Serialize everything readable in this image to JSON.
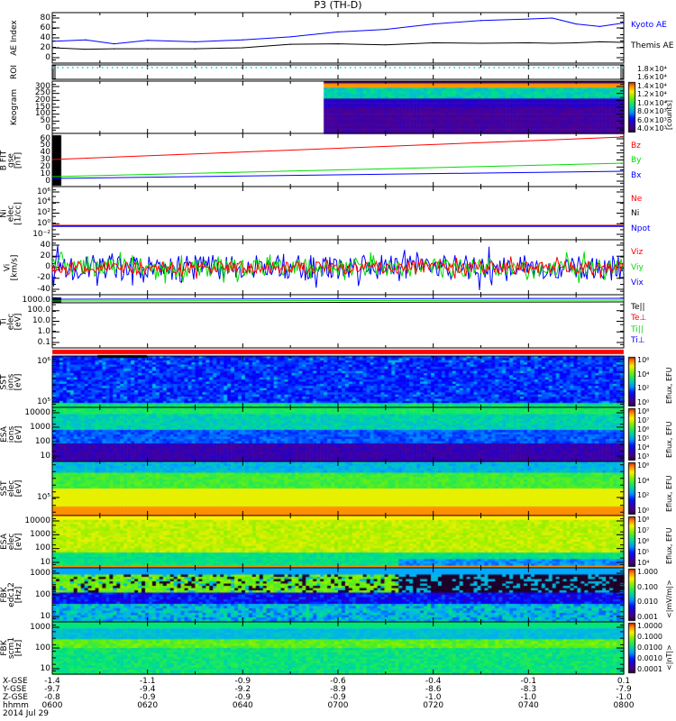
{
  "title": "P3 (TH-D)",
  "colors": {
    "blue": "#0000ff",
    "red": "#ff0000",
    "green": "#00dd00",
    "black": "#000000",
    "cyan": "#00ccdd"
  },
  "panels": [
    {
      "id": "ae",
      "ylabel": "AE Index",
      "ticks": [
        "0",
        "20",
        "40",
        "60",
        "80"
      ],
      "legend": [
        {
          "text": "Kyoto AE",
          "color": "#0000ff"
        },
        {
          "text": "Themis AE",
          "color": "#000000"
        }
      ]
    },
    {
      "id": "roi",
      "ylabel": "ROI",
      "ticks": [],
      "legend": []
    },
    {
      "id": "keogram",
      "ylabel": "Keogram",
      "ticks": [
        "0",
        "50",
        "100",
        "150",
        "200",
        "250",
        "300"
      ],
      "colorbar": {
        "labels": [
          "4.0×10³",
          "6.0×10³",
          "8.0×10³",
          "1.0×10⁴",
          "1.2×10⁴",
          "1.4×10⁴",
          "1.6×10⁴",
          "1.8×10⁴"
        ],
        "unit": "[counts]"
      }
    },
    {
      "id": "bfit",
      "ylabel": "B FIT\ngse\n[nT]",
      "ticks": [
        "0",
        "10",
        "20",
        "30",
        "40",
        "50",
        "60"
      ],
      "legend": [
        {
          "text": "Bz",
          "color": "#ff0000"
        },
        {
          "text": "By",
          "color": "#00dd00"
        },
        {
          "text": "Bx",
          "color": "#0000ff"
        }
      ]
    },
    {
      "id": "ni",
      "ylabel": "Ni\nelec\n[1/cc]",
      "ticks": [
        "10⁻²",
        "10⁰",
        "10²",
        "10⁴",
        "10⁶"
      ],
      "legend": [
        {
          "text": "Ne",
          "color": "#ff0000"
        },
        {
          "text": "Ni",
          "color": "#000000"
        },
        {
          "text": "Npot",
          "color": "#0000ff"
        }
      ]
    },
    {
      "id": "vi",
      "ylabel": "Vi\n[km/s]",
      "ticks": [
        "-40",
        "-20",
        "0",
        "20",
        "40"
      ],
      "legend": [
        {
          "text": "Viz",
          "color": "#ff0000"
        },
        {
          "text": "Viy",
          "color": "#00dd00"
        },
        {
          "text": "Vix",
          "color": "#0000ff"
        }
      ]
    },
    {
      "id": "ti",
      "ylabel": "Ti\nelec\n[eV]",
      "ticks": [
        "0.1",
        "1.0",
        "10.0",
        "100.0",
        "1000.0"
      ],
      "legend": [
        {
          "text": "Te||",
          "color": "#000000"
        },
        {
          "text": "Te⊥",
          "color": "#ff0000"
        },
        {
          "text": "Ti||",
          "color": "#00dd00"
        },
        {
          "text": "Ti⊥",
          "color": "#0000ff"
        }
      ]
    },
    {
      "id": "sst_i",
      "ylabel": "SST\nions\n[eV]",
      "ticks": [
        "10⁵",
        "10⁶"
      ],
      "colorbar": {
        "labels": [
          "10⁰",
          "10²",
          "10⁴",
          "10⁶"
        ],
        "unit": "Eflux, EFU"
      }
    },
    {
      "id": "esa_i",
      "ylabel": "ESA\nions\n[eV]",
      "ticks": [
        "10",
        "100",
        "1000",
        "10000"
      ],
      "colorbar": {
        "labels": [
          "10³",
          "10⁴",
          "10⁵",
          "10⁶",
          "10⁷",
          "10⁸"
        ],
        "unit": "Eflux, EFU"
      }
    },
    {
      "id": "sst_e",
      "ylabel": "SST\nelec\n[eV]",
      "ticks": [
        "10⁵"
      ],
      "colorbar": {
        "labels": [
          "10⁰",
          "10²",
          "10⁴",
          "10⁶"
        ],
        "unit": "Eflux, EFU"
      }
    },
    {
      "id": "esa_e",
      "ylabel": "ESA\nelec\n[eV]",
      "ticks": [
        "10",
        "100",
        "1000",
        "10000"
      ],
      "colorbar": {
        "labels": [
          "10⁴",
          "10⁵",
          "10⁶",
          "10⁷",
          "10⁸"
        ],
        "unit": "Eflux, EFU"
      }
    },
    {
      "id": "fbk_e",
      "ylabel": "FBK\nedc12\n[Hz]",
      "ticks": [
        "10",
        "100",
        "1000"
      ],
      "colorbar": {
        "labels": [
          "0.001",
          "0.010",
          "0.100",
          "1.000"
        ],
        "unit": "<|mV/m|>"
      }
    },
    {
      "id": "fbk_b",
      "ylabel": "FBK\nscm1\n[Hz]",
      "ticks": [
        "10",
        "100",
        "1000"
      ],
      "colorbar": {
        "labels": [
          "0.0001",
          "0.0010",
          "0.0100",
          "0.1000",
          "1.0000"
        ],
        "unit": "<|nT|>"
      }
    }
  ],
  "footer": {
    "row_labels": [
      "X-GSE",
      "Y-GSE",
      "Z-GSE",
      "hhmm"
    ],
    "date": "2014 Jul 29",
    "columns": [
      {
        "x": "-1.4",
        "y": "-9.7",
        "z": "-0.8",
        "t": "0600"
      },
      {
        "x": "-1.1",
        "y": "-9.4",
        "z": "-0.9",
        "t": "0620"
      },
      {
        "x": "-0.9",
        "y": "-9.2",
        "z": "-0.9",
        "t": "0640"
      },
      {
        "x": "-0.6",
        "y": "-8.9",
        "z": "-0.9",
        "t": "0700"
      },
      {
        "x": "-0.4",
        "y": "-8.6",
        "z": "-1.0",
        "t": "0720"
      },
      {
        "x": "-0.1",
        "y": "-8.3",
        "z": "-1.0",
        "t": "0740"
      },
      {
        "x": "0.1",
        "y": "-7.9",
        "z": "-1.0",
        "t": "0800"
      }
    ]
  },
  "chart_data": {
    "type": "line",
    "title": "P3 (TH-D)",
    "xlabel": "hhmm",
    "ylabel": "AE Index",
    "x": [
      "0600",
      "0607",
      "0613",
      "0620",
      "0630",
      "0640",
      "0650",
      "0700",
      "0710",
      "0720",
      "0730",
      "0740",
      "0745",
      "0750",
      "0755",
      "0800"
    ],
    "xlim": [
      "0600",
      "0800"
    ],
    "ylim": [
      0,
      85
    ],
    "series": [
      {
        "name": "Kyoto AE",
        "color": "#0000ff",
        "values": [
          33,
          36,
          28,
          35,
          32,
          36,
          42,
          52,
          57,
          68,
          75,
          78,
          80,
          68,
          63,
          70
        ]
      },
      {
        "name": "Themis AE",
        "color": "#000000",
        "values": [
          20,
          17,
          18,
          18,
          18,
          20,
          27,
          28,
          26,
          30,
          29,
          30,
          29,
          30,
          32,
          31
        ]
      }
    ]
  }
}
